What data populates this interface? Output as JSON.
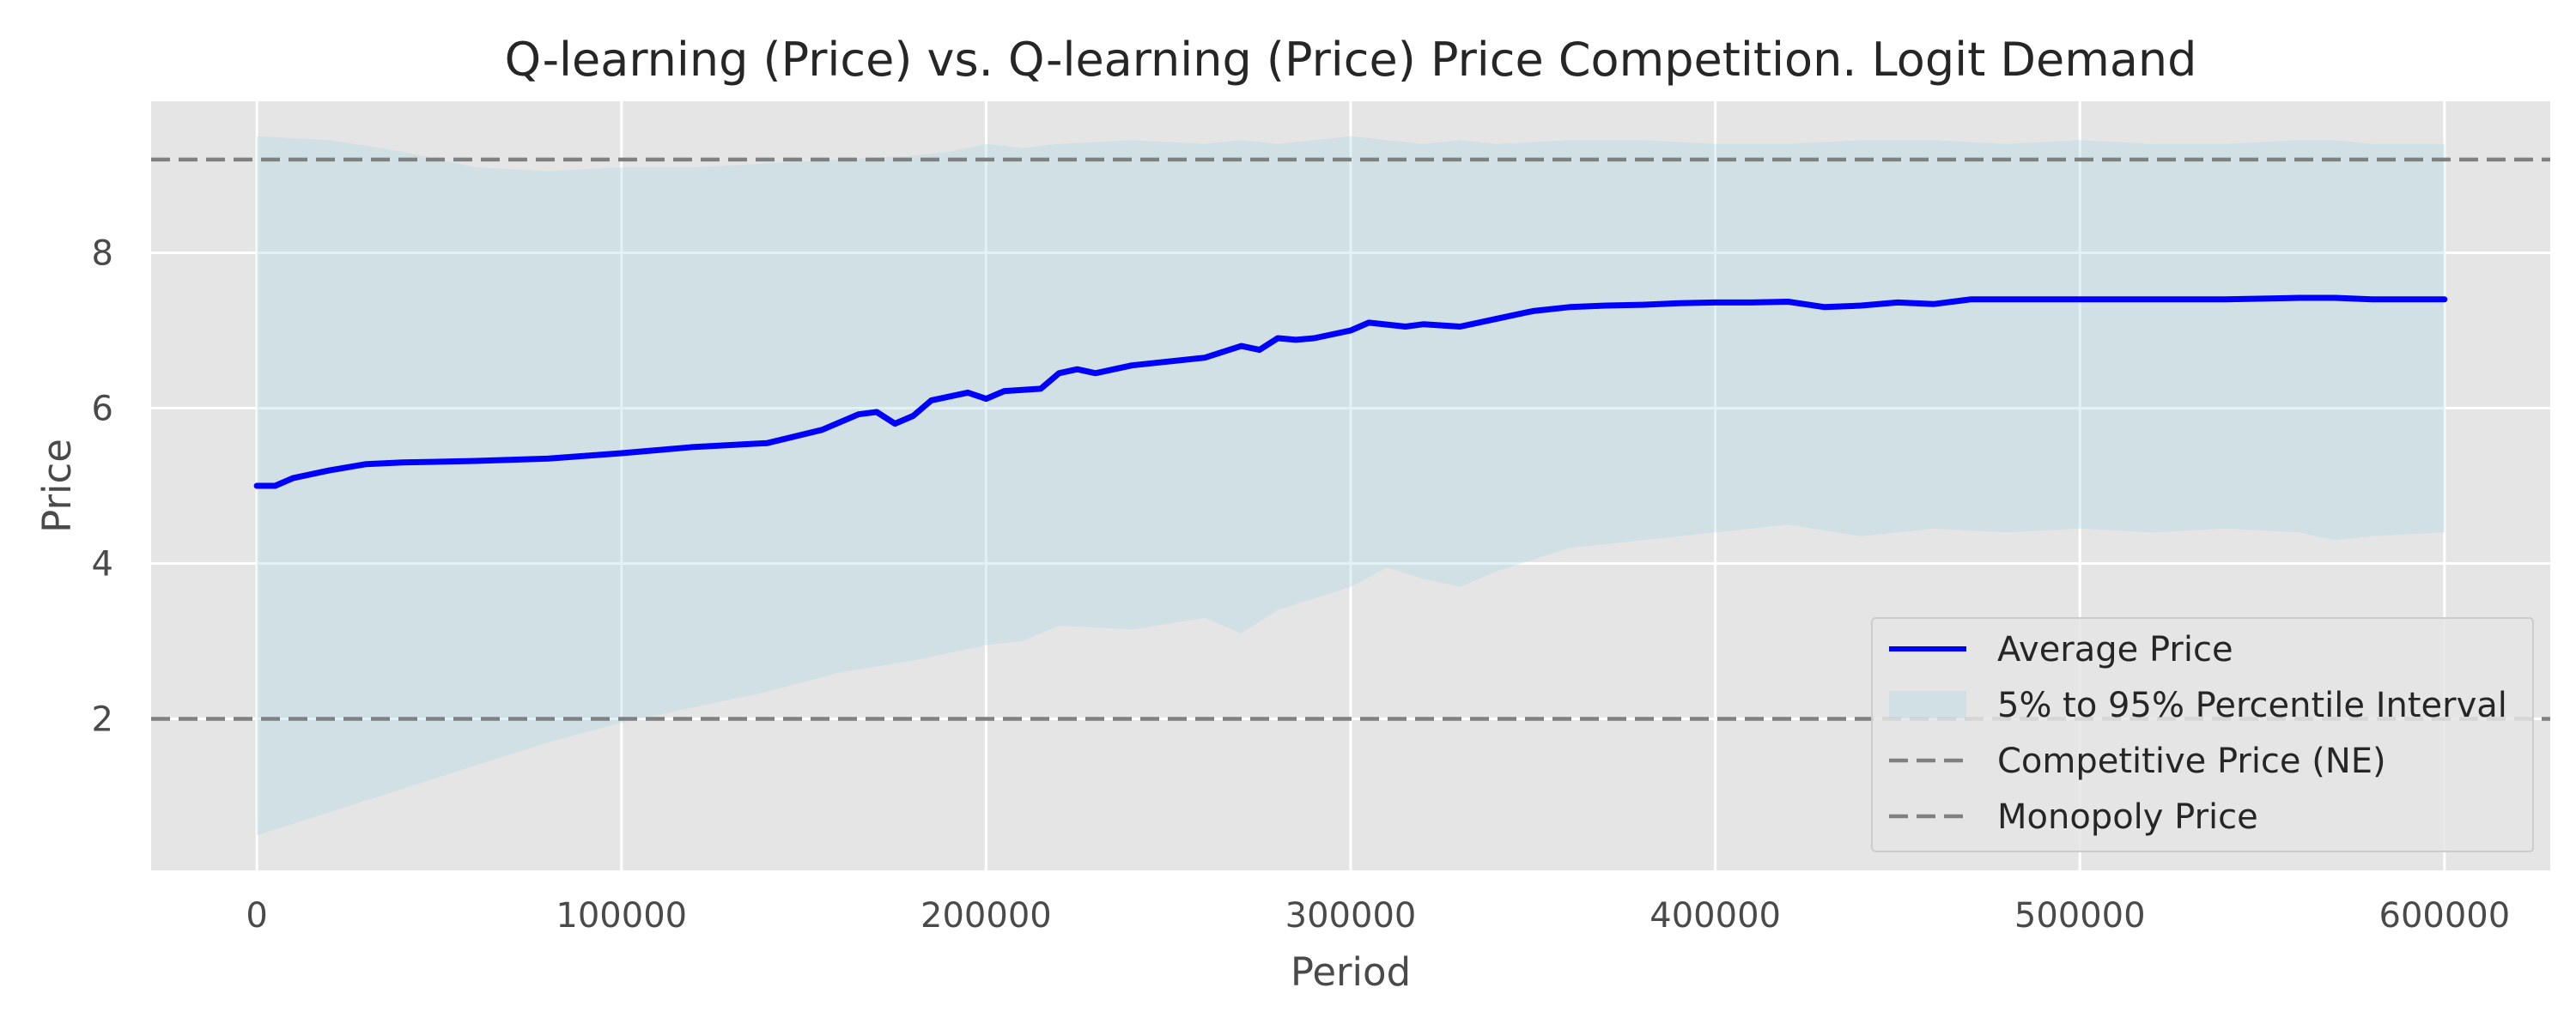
{
  "chart_data": {
    "type": "line",
    "title": "Q-learning (Price) vs. Q-learning (Price) Price Competition. Logit Demand",
    "xlabel": "Period",
    "ylabel": "Price",
    "xlim": [
      -29000,
      629000
    ],
    "ylim": [
      0.05,
      9.95
    ],
    "x_ticks": [
      0,
      100000,
      200000,
      300000,
      400000,
      500000,
      600000
    ],
    "x_tick_labels": [
      "0",
      "100000",
      "200000",
      "300000",
      "400000",
      "500000",
      "600000"
    ],
    "y_ticks": [
      2,
      4,
      6,
      8
    ],
    "y_tick_labels": [
      "2",
      "4",
      "6",
      "8"
    ],
    "grid": true,
    "legend_position": "lower right",
    "series": [
      {
        "name": "Average Price",
        "kind": "line",
        "color": "#0000ff",
        "x": [
          0,
          5000,
          10000,
          20000,
          30000,
          40000,
          60000,
          80000,
          100000,
          120000,
          140000,
          155000,
          165000,
          170000,
          175000,
          180000,
          185000,
          195000,
          200000,
          205000,
          215000,
          220000,
          225000,
          230000,
          240000,
          250000,
          260000,
          270000,
          275000,
          280000,
          285000,
          290000,
          300000,
          305000,
          315000,
          320000,
          330000,
          340000,
          350000,
          360000,
          370000,
          380000,
          390000,
          400000,
          410000,
          420000,
          430000,
          440000,
          450000,
          460000,
          470000,
          480000,
          500000,
          520000,
          540000,
          560000,
          570000,
          580000,
          600000
        ],
        "y": [
          5.0,
          5.0,
          5.1,
          5.2,
          5.28,
          5.3,
          5.32,
          5.35,
          5.42,
          5.5,
          5.55,
          5.72,
          5.92,
          5.95,
          5.8,
          5.9,
          6.1,
          6.2,
          6.12,
          6.22,
          6.25,
          6.45,
          6.5,
          6.45,
          6.55,
          6.6,
          6.65,
          6.8,
          6.75,
          6.9,
          6.88,
          6.9,
          7.0,
          7.1,
          7.05,
          7.08,
          7.05,
          7.15,
          7.25,
          7.3,
          7.32,
          7.33,
          7.35,
          7.36,
          7.36,
          7.37,
          7.3,
          7.32,
          7.36,
          7.34,
          7.4,
          7.4,
          7.4,
          7.4,
          7.4,
          7.42,
          7.42,
          7.4,
          7.4
        ]
      },
      {
        "name": "5% to 95% Percentile Interval",
        "kind": "band",
        "color": "#add8e6",
        "opacity": 0.35,
        "x": [
          0,
          20000,
          40000,
          60000,
          80000,
          100000,
          120000,
          140000,
          160000,
          180000,
          190000,
          200000,
          210000,
          220000,
          240000,
          260000,
          270000,
          280000,
          290000,
          300000,
          310000,
          320000,
          330000,
          340000,
          360000,
          380000,
          400000,
          420000,
          440000,
          460000,
          480000,
          500000,
          520000,
          540000,
          560000,
          570000,
          580000,
          600000
        ],
        "lower": [
          0.5,
          0.8,
          1.1,
          1.4,
          1.7,
          1.95,
          2.15,
          2.35,
          2.6,
          2.75,
          2.85,
          2.95,
          3.0,
          3.2,
          3.15,
          3.3,
          3.1,
          3.4,
          3.55,
          3.7,
          3.95,
          3.8,
          3.7,
          3.9,
          4.2,
          4.3,
          4.4,
          4.5,
          4.35,
          4.45,
          4.4,
          4.45,
          4.4,
          4.45,
          4.4,
          4.3,
          4.35,
          4.4
        ],
        "upper": [
          9.5,
          9.45,
          9.3,
          9.1,
          9.05,
          9.1,
          9.1,
          9.15,
          9.2,
          9.25,
          9.3,
          9.4,
          9.35,
          9.4,
          9.45,
          9.4,
          9.45,
          9.4,
          9.45,
          9.5,
          9.45,
          9.4,
          9.45,
          9.4,
          9.45,
          9.45,
          9.4,
          9.4,
          9.45,
          9.45,
          9.4,
          9.45,
          9.4,
          9.4,
          9.45,
          9.45,
          9.4,
          9.4
        ]
      },
      {
        "name": "Competitive Price (NE)",
        "kind": "hline",
        "color": "#808080",
        "y": 2.0
      },
      {
        "name": "Monopoly Price",
        "kind": "hline",
        "color": "#808080",
        "y": 9.2
      }
    ]
  }
}
